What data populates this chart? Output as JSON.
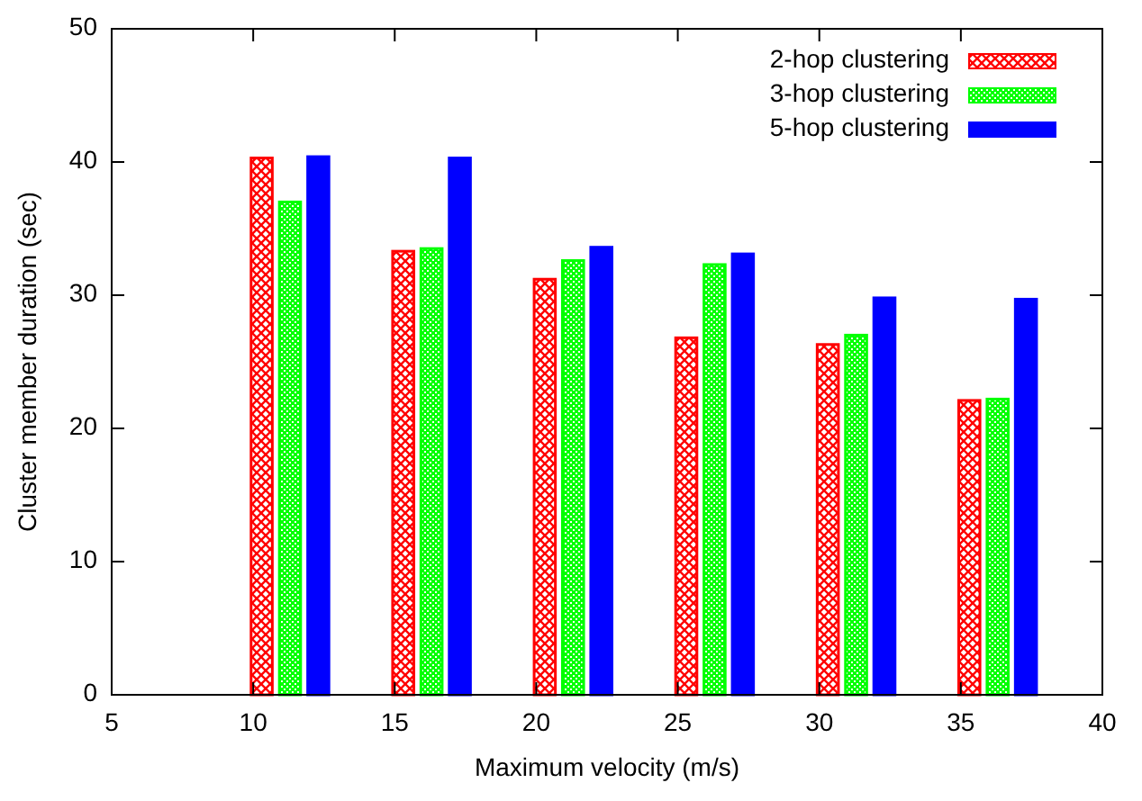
{
  "chart_data": {
    "type": "bar",
    "xlabel": "Maximum velocity (m/s)",
    "ylabel": "Cluster member duration (sec)",
    "x": [
      10,
      15,
      20,
      25,
      30,
      35
    ],
    "xlim": [
      5,
      40
    ],
    "xticks": [
      5,
      10,
      15,
      20,
      25,
      30,
      35,
      40
    ],
    "ylim": [
      0,
      50
    ],
    "yticks": [
      0,
      10,
      20,
      30,
      40,
      50
    ],
    "legend": "top right",
    "grid": false,
    "series": [
      {
        "name": "2-hop clustering",
        "color": "#ff0000",
        "values": [
          40.3,
          33.3,
          31.2,
          26.8,
          26.3,
          22.1
        ]
      },
      {
        "name": "3-hop clustering",
        "color": "#00ff00",
        "values": [
          37.0,
          33.5,
          32.6,
          32.3,
          27.0,
          22.2
        ]
      },
      {
        "name": "5-hop clustering",
        "color": "#0000ff",
        "values": [
          40.4,
          40.3,
          33.6,
          33.1,
          29.8,
          29.7
        ]
      }
    ]
  }
}
